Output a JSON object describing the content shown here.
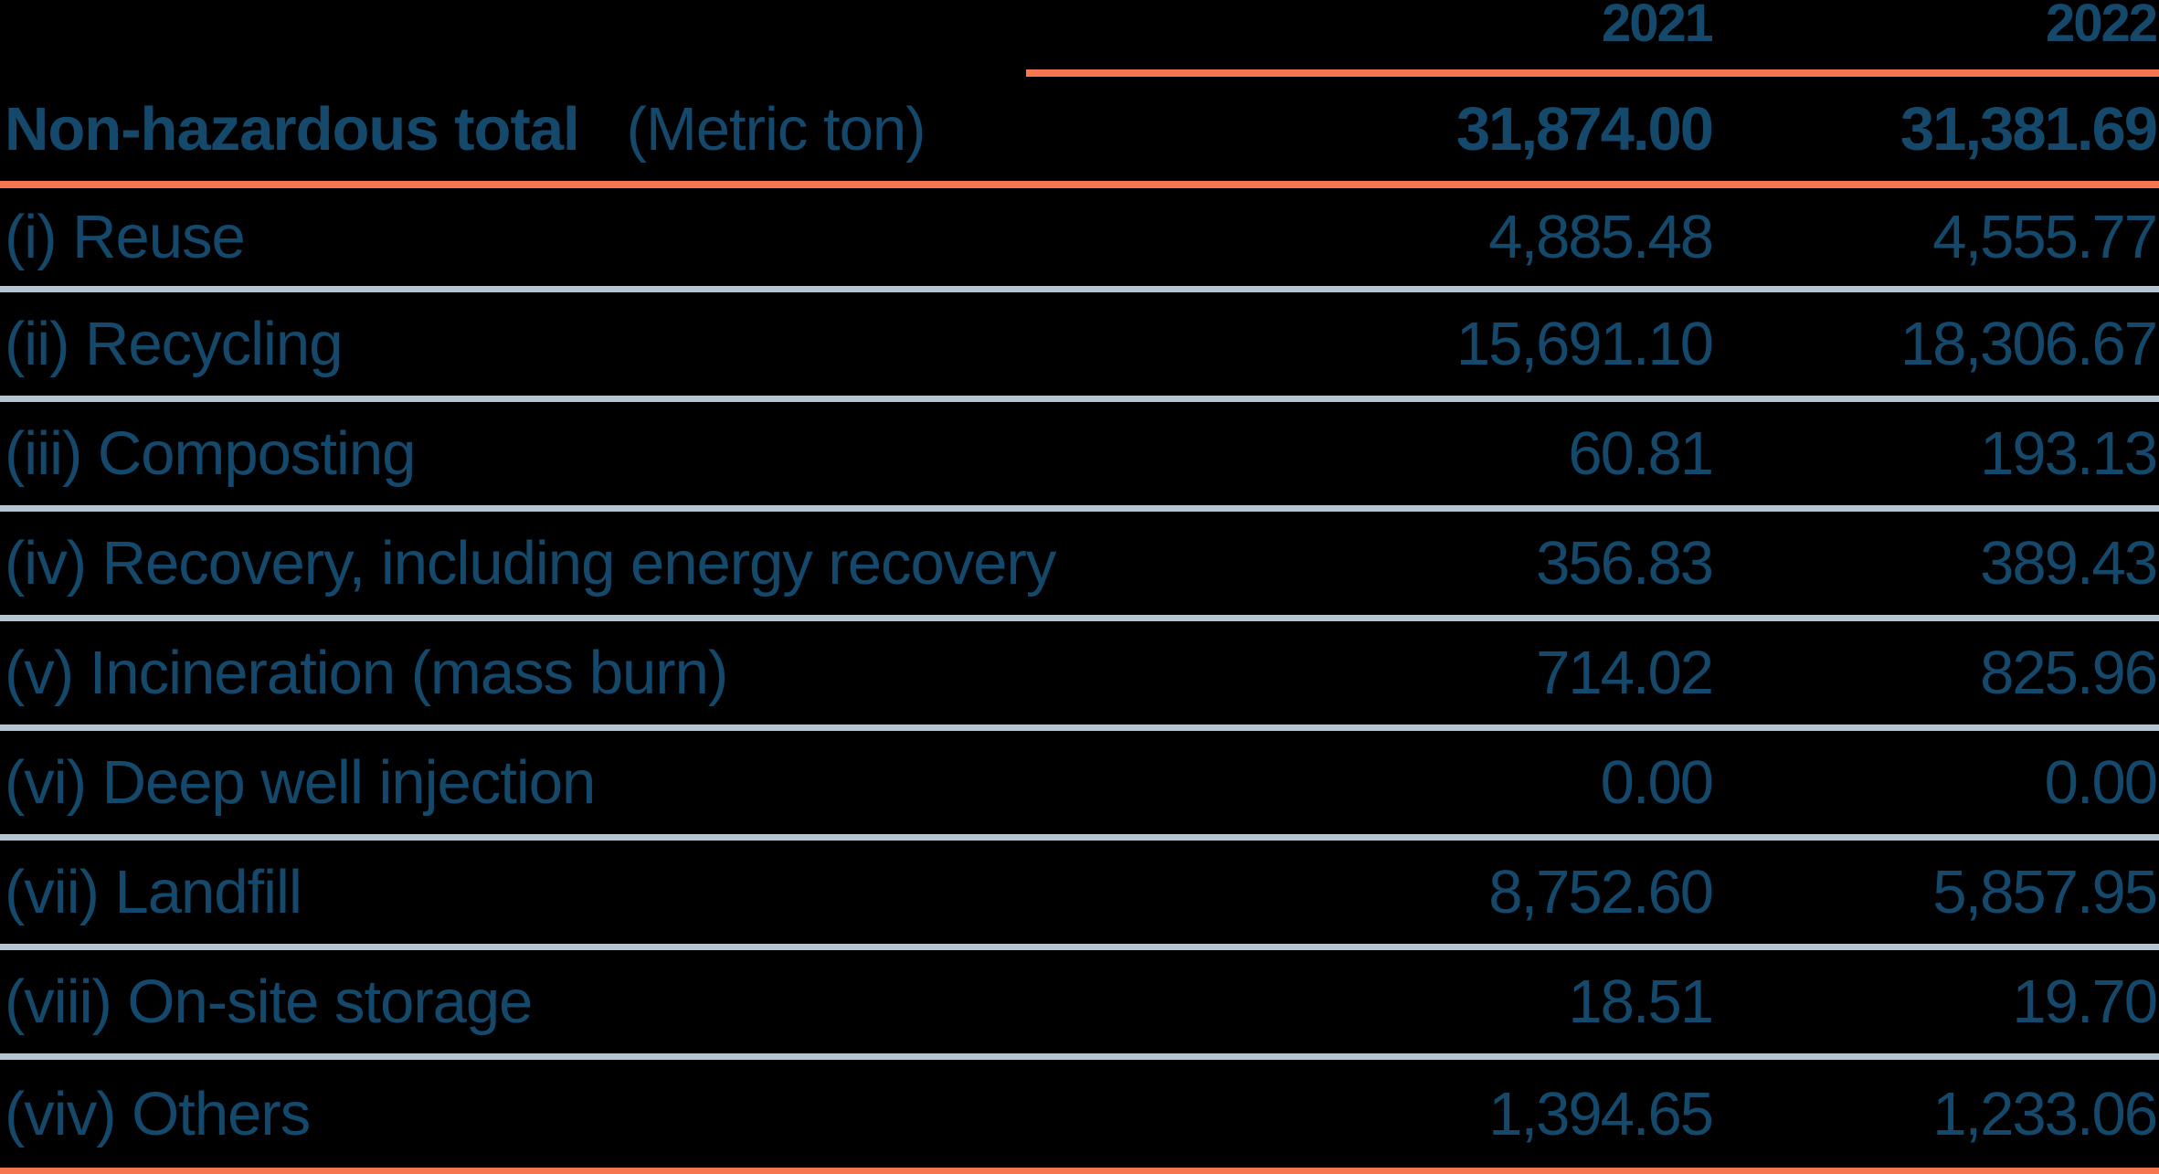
{
  "columns": [
    "2021",
    "2022"
  ],
  "total": {
    "label": "Non-hazardous total",
    "unit": "(Metric ton)",
    "values": [
      "31,874.00",
      "31,381.69"
    ]
  },
  "rows": [
    {
      "label": "(i) Reuse",
      "values": [
        "4,885.48",
        "4,555.77"
      ]
    },
    {
      "label": "(ii) Recycling",
      "values": [
        "15,691.10",
        "18,306.67"
      ]
    },
    {
      "label": "(iii) Composting",
      "values": [
        "60.81",
        "193.13"
      ]
    },
    {
      "label": "(iv) Recovery, including energy recovery",
      "values": [
        "356.83",
        "389.43"
      ]
    },
    {
      "label": "(v) Incineration (mass burn)",
      "values": [
        "714.02",
        "825.96"
      ]
    },
    {
      "label": "(vi) Deep well injection",
      "values": [
        "0.00",
        "0.00"
      ]
    },
    {
      "label": "(vii) Landfill",
      "values": [
        "8,752.60",
        "5,857.95"
      ]
    },
    {
      "label": "(viii) On-site storage",
      "values": [
        "18.51",
        "19.70"
      ]
    },
    {
      "label": "(viv) Others",
      "values": [
        "1,394.65",
        "1,233.06"
      ]
    }
  ],
  "colors": {
    "background": "#000000",
    "text": "#14496B",
    "accent": "#F5764F",
    "separator": "#B3C7D2"
  },
  "chart_data": {
    "type": "table",
    "title": "Non-hazardous total (Metric ton)",
    "categories": [
      "Non-hazardous total",
      "(i) Reuse",
      "(ii) Recycling",
      "(iii) Composting",
      "(iv) Recovery, including energy recovery",
      "(v) Incineration (mass burn)",
      "(vi) Deep well injection",
      "(vii) Landfill",
      "(viii) On-site storage",
      "(viv) Others"
    ],
    "series": [
      {
        "name": "2021",
        "values": [
          31874.0,
          4885.48,
          15691.1,
          60.81,
          356.83,
          714.02,
          0.0,
          8752.6,
          18.51,
          1394.65
        ]
      },
      {
        "name": "2022",
        "values": [
          31381.69,
          4555.77,
          18306.67,
          193.13,
          389.43,
          825.96,
          0.0,
          5857.95,
          19.7,
          1233.06
        ]
      }
    ]
  }
}
